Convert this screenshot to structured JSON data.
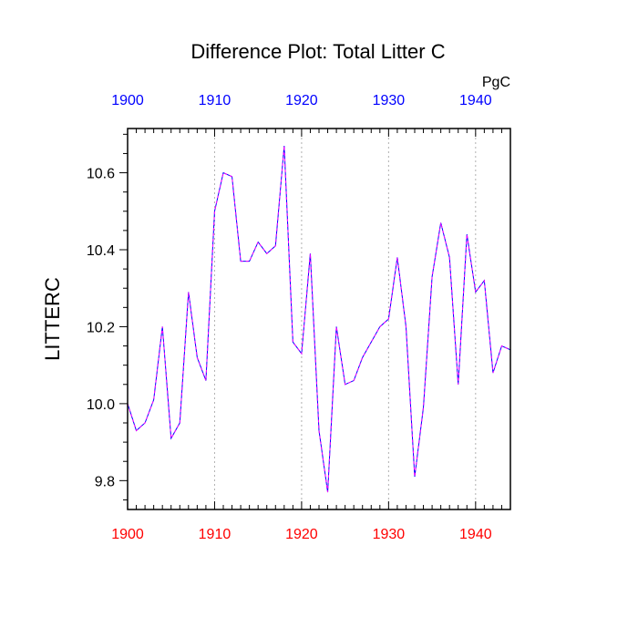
{
  "chart_data": {
    "type": "line",
    "title": "Difference Plot: Total Litter C",
    "units_label": "PgC",
    "ylabel": "LITTERC",
    "xlabel": "",
    "xlim": [
      1900,
      1944
    ],
    "ylim": [
      9.725,
      10.715
    ],
    "x_ticks": [
      "1900",
      "1910",
      "1920",
      "1930",
      "1940"
    ],
    "y_ticks": [
      "9.8",
      "10.0",
      "10.2",
      "10.4",
      "10.6"
    ],
    "grid": "vertical dotted at major x ticks",
    "colors": {
      "series_a": "#0000ff",
      "series_b": "#ff00ff",
      "top_ticks": "#0000ff",
      "bottom_ticks": "#ff0000"
    },
    "x": [
      1900,
      1901,
      1902,
      1903,
      1904,
      1905,
      1906,
      1907,
      1908,
      1909,
      1910,
      1911,
      1912,
      1913,
      1914,
      1915,
      1916,
      1917,
      1918,
      1919,
      1920,
      1921,
      1922,
      1923,
      1924,
      1925,
      1926,
      1927,
      1928,
      1929,
      1930,
      1931,
      1932,
      1933,
      1934,
      1935,
      1936,
      1937,
      1938,
      1939,
      1940,
      1941,
      1942,
      1943,
      1944
    ],
    "series": [
      {
        "values": [
          10.0,
          9.93,
          9.95,
          10.01,
          10.2,
          9.91,
          9.95,
          10.29,
          10.12,
          10.06,
          10.5,
          10.6,
          10.59,
          10.37,
          10.37,
          10.42,
          10.39,
          10.41,
          10.67,
          10.16,
          10.13,
          10.39,
          9.93,
          9.77,
          10.2,
          10.05,
          10.06,
          10.12,
          10.16,
          10.2,
          10.22,
          10.38,
          10.2,
          9.81,
          9.99,
          10.33,
          10.47,
          10.38,
          10.05,
          10.44,
          10.29,
          10.32,
          10.08,
          10.15,
          10.14
        ]
      }
    ]
  }
}
